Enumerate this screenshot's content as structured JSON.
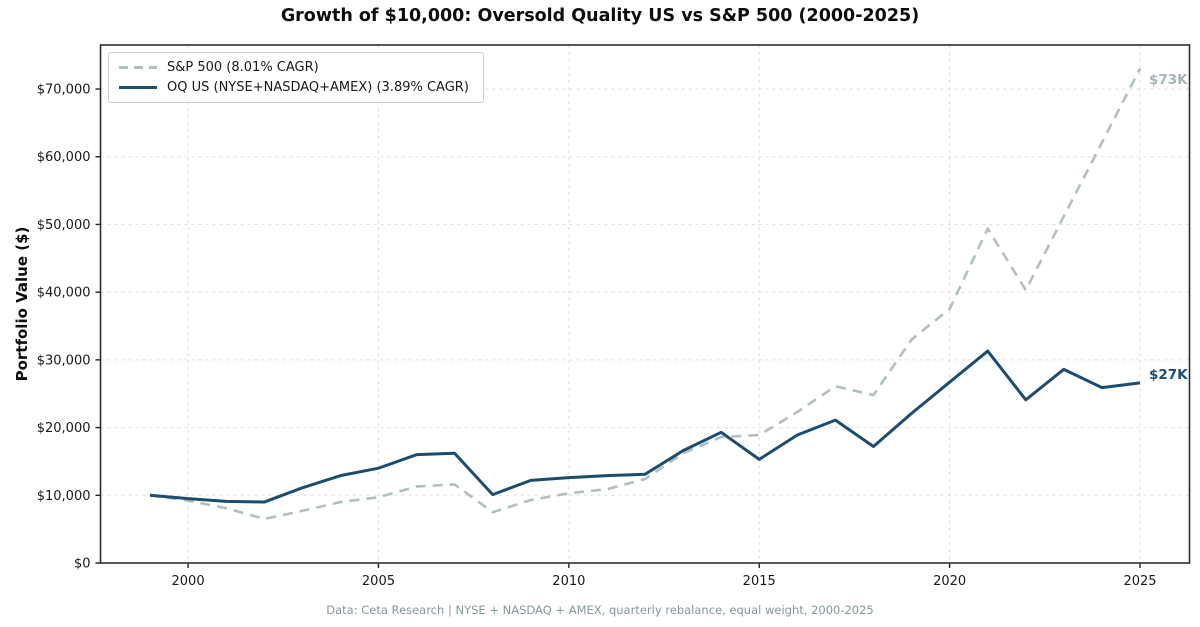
{
  "title": "Growth of $10,000: Oversold Quality US vs S&P 500 (2000-2025)",
  "footer": {
    "caption": "Data: Ceta Research | NYSE + NASDAQ + AMEX, quarterly rebalance, equal weight, 2000-2025"
  },
  "annotations": {
    "sp500_end": "$73K",
    "oq_end": "$27K"
  },
  "colors": {
    "sp500_line": "#b2bfc1",
    "oq_line": "#1d4d6e",
    "sp500_annotation": "#a6b5b8",
    "oq_annotation": "#1d4d6e",
    "grid": "#dddddd",
    "frame": "#2e2e2e",
    "tick_text": "#1a1a1a",
    "footer_text": "#85989c",
    "background": "#ffffff",
    "legend_border": "#cccccc"
  },
  "chart_data": {
    "type": "line",
    "title": "Growth of $10,000: Oversold Quality US vs S&P 500 (2000-2025)",
    "xlabel": "",
    "ylabel": "Portfolio Value ($)",
    "x": [
      1999,
      2000,
      2001,
      2002,
      2003,
      2004,
      2005,
      2006,
      2007,
      2008,
      2009,
      2010,
      2011,
      2012,
      2013,
      2014,
      2015,
      2016,
      2017,
      2018,
      2019,
      2020,
      2021,
      2022,
      2023,
      2024,
      2025
    ],
    "series": [
      {
        "name": "S&P 500 (8.01% CAGR)",
        "style": "dashed",
        "color": "#b2bfc1",
        "values": [
          10000,
          9200,
          8100,
          6500,
          7700,
          9000,
          9700,
          11300,
          11600,
          7500,
          9300,
          10300,
          10900,
          12400,
          16200,
          18600,
          18900,
          22300,
          26100,
          24800,
          33000,
          37500,
          49400,
          40300,
          51200,
          62100,
          73000
        ]
      },
      {
        "name": "OQ US (NYSE+NASDAQ+AMEX) (3.89% CAGR)",
        "style": "solid",
        "color": "#1d4d6e",
        "values": [
          10000,
          9500,
          9100,
          9000,
          11100,
          12900,
          14000,
          16000,
          16200,
          10100,
          12200,
          12600,
          12900,
          13100,
          16600,
          19300,
          15300,
          18900,
          21100,
          17200,
          22100,
          26700,
          31300,
          24100,
          28600,
          25900,
          26600
        ]
      }
    ],
    "x_ticks": {
      "values": [
        2000,
        2005,
        2010,
        2015,
        2020,
        2025
      ],
      "labels": [
        "2000",
        "2005",
        "2010",
        "2015",
        "2020",
        "2025"
      ]
    },
    "y_ticks": {
      "values": [
        0,
        10000,
        20000,
        30000,
        40000,
        50000,
        60000,
        70000
      ],
      "labels": [
        "$0",
        "$10,000",
        "$20,000",
        "$30,000",
        "$40,000",
        "$50,000",
        "$60,000",
        "$70,000"
      ]
    },
    "xlim": [
      1997.7,
      2026.3
    ],
    "ylim": [
      0,
      76500
    ],
    "grid": true,
    "legend_position": "upper left",
    "end_labels": [
      {
        "series": "S&P 500",
        "text": "$73K"
      },
      {
        "series": "OQ US",
        "text": "$27K"
      }
    ]
  }
}
